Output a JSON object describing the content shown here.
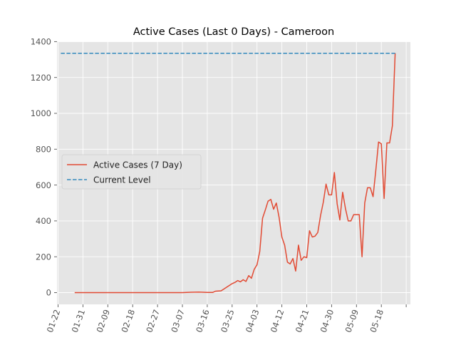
{
  "chart_data": {
    "type": "line",
    "title": "Active Cases (Last 0 Days) - Cameroon",
    "xlabel": "",
    "ylabel": "",
    "x_ticks": [
      "01-22",
      "01-31",
      "02-09",
      "02-18",
      "02-27",
      "03-07",
      "03-16",
      "03-25",
      "04-03",
      "04-12",
      "04-21",
      "04-30",
      "05-09",
      "05-18"
    ],
    "ylim": [
      -65,
      1400
    ],
    "y_ticks": [
      0,
      200,
      400,
      600,
      800,
      1000,
      1200,
      1400
    ],
    "grid": true,
    "legend_position": "center-left",
    "colors": {
      "background": "#E5E5E5",
      "grid": "#FFFFFF",
      "active": "#E24A33",
      "current": "#348ABD",
      "text": "#555555",
      "title": "#000000"
    },
    "series": [
      {
        "name": "Active Cases (7 Day)",
        "style": "solid",
        "points": [
          [
            "01-28",
            0
          ],
          [
            "02-04",
            0
          ],
          [
            "02-11",
            0
          ],
          [
            "02-18",
            0
          ],
          [
            "02-25",
            0
          ],
          [
            "03-04",
            0
          ],
          [
            "03-07",
            0
          ],
          [
            "03-10",
            2
          ],
          [
            "03-13",
            3
          ],
          [
            "03-16",
            1
          ],
          [
            "03-18",
            1
          ],
          [
            "03-19",
            8
          ],
          [
            "03-21",
            10
          ],
          [
            "03-23",
            30
          ],
          [
            "03-25",
            50
          ],
          [
            "03-26",
            57
          ],
          [
            "03-27",
            67
          ],
          [
            "03-28",
            60
          ],
          [
            "03-29",
            72
          ],
          [
            "03-30",
            62
          ],
          [
            "03-31",
            95
          ],
          [
            "04-01",
            80
          ],
          [
            "04-02",
            130
          ],
          [
            "04-03",
            155
          ],
          [
            "04-04",
            230
          ],
          [
            "04-05",
            415
          ],
          [
            "04-06",
            460
          ],
          [
            "04-07",
            510
          ],
          [
            "04-08",
            520
          ],
          [
            "04-09",
            465
          ],
          [
            "04-10",
            500
          ],
          [
            "04-11",
            420
          ],
          [
            "04-12",
            310
          ],
          [
            "04-13",
            265
          ],
          [
            "04-14",
            170
          ],
          [
            "04-15",
            160
          ],
          [
            "04-16",
            190
          ],
          [
            "04-17",
            120
          ],
          [
            "04-18",
            265
          ],
          [
            "04-19",
            180
          ],
          [
            "04-20",
            200
          ],
          [
            "04-21",
            195
          ],
          [
            "04-22",
            345
          ],
          [
            "04-23",
            310
          ],
          [
            "04-24",
            315
          ],
          [
            "04-25",
            335
          ],
          [
            "04-26",
            430
          ],
          [
            "04-27",
            505
          ],
          [
            "04-28",
            605
          ],
          [
            "04-29",
            545
          ],
          [
            "04-30",
            545
          ],
          [
            "05-01",
            670
          ],
          [
            "05-02",
            495
          ],
          [
            "05-03",
            405
          ],
          [
            "05-04",
            560
          ],
          [
            "05-05",
            470
          ],
          [
            "05-06",
            400
          ],
          [
            "05-07",
            400
          ],
          [
            "05-08",
            435
          ],
          [
            "05-09",
            435
          ],
          [
            "05-10",
            435
          ],
          [
            "05-11",
            200
          ],
          [
            "05-12",
            500
          ],
          [
            "05-13",
            585
          ],
          [
            "05-14",
            585
          ],
          [
            "05-15",
            535
          ],
          [
            "05-16",
            680
          ],
          [
            "05-17",
            840
          ],
          [
            "05-18",
            830
          ],
          [
            "05-19",
            525
          ],
          [
            "05-20",
            835
          ],
          [
            "05-21",
            835
          ],
          [
            "05-22",
            930
          ],
          [
            "05-23",
            1335
          ]
        ]
      },
      {
        "name": "Current Level",
        "style": "dashed",
        "points": [
          [
            "01-23",
            1335
          ],
          [
            "05-23",
            1335
          ]
        ]
      }
    ]
  }
}
